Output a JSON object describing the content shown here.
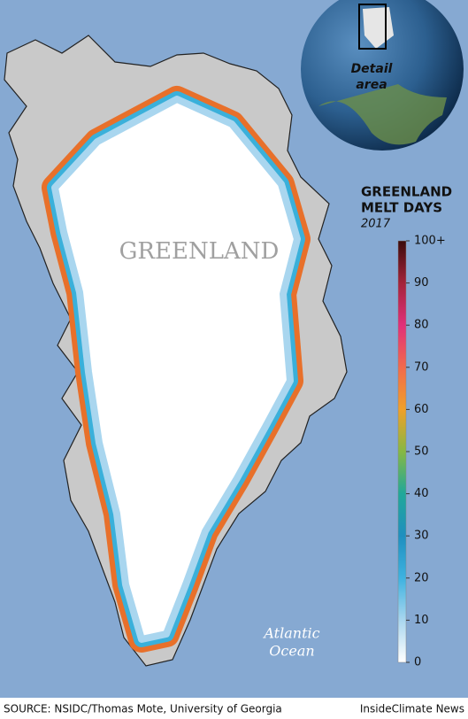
{
  "header": {
    "title_lines": [
      "GREENLAND",
      "MELT DAYS"
    ],
    "year": "2017"
  },
  "map": {
    "land_label": "GREENLAND",
    "ocean_label_lines": [
      "Atlantic",
      "Ocean"
    ],
    "inset_label_lines": [
      "Detail",
      "area"
    ]
  },
  "legend": {
    "colors": [
      "#ffffff",
      "#a9d6ef",
      "#3eb2e0",
      "#1f8fbf",
      "#20a89a",
      "#86b844",
      "#f0a02a",
      "#f26a4c",
      "#e0307a",
      "#a3233a",
      "#3b0c0c"
    ],
    "ticks": [
      0,
      10,
      20,
      30,
      40,
      50,
      60,
      70,
      80,
      90,
      {
        "value": 100,
        "label": "100+"
      }
    ]
  },
  "footer": {
    "source": "SOURCE: NSIDC/Thomas Mote, University of Georgia",
    "credit": "InsideClimate News"
  }
}
